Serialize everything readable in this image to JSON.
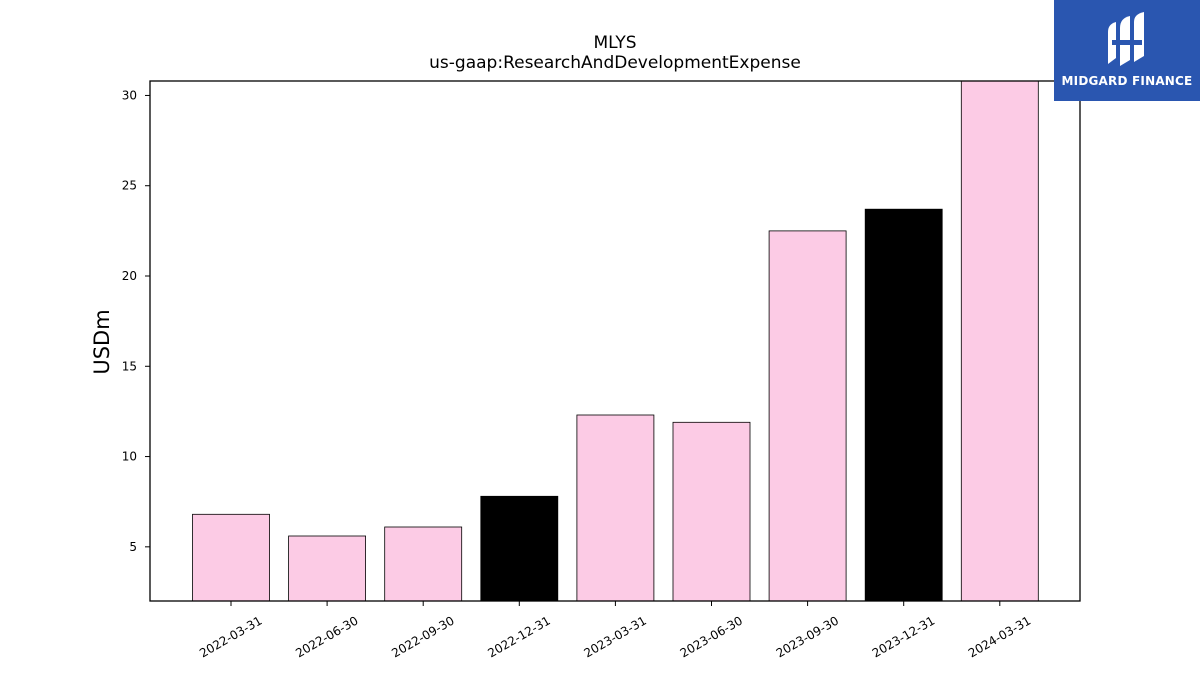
{
  "logo": {
    "text": "MIDGARD FINANCE"
  },
  "chart_data": {
    "type": "bar",
    "title": "MLYS",
    "subtitle": "us-gaap:ResearchAndDevelopmentExpense",
    "ylabel": "USDm",
    "xlabel": "",
    "ylim": [
      2,
      30.8
    ],
    "yticks": [
      5,
      10,
      15,
      20,
      25,
      30
    ],
    "grid": false,
    "categories": [
      "2022-03-31",
      "2022-06-30",
      "2022-09-30",
      "2022-12-31",
      "2023-03-31",
      "2023-06-30",
      "2023-09-30",
      "2023-12-31",
      "2024-03-31"
    ],
    "values": [
      6.8,
      5.6,
      6.1,
      7.8,
      12.3,
      11.9,
      22.5,
      23.7,
      30.8
    ],
    "bar_colors": [
      "#fccbe5",
      "#fccbe5",
      "#fccbe5",
      "#000000",
      "#fccbe5",
      "#fccbe5",
      "#fccbe5",
      "#000000",
      "#fccbe5"
    ]
  }
}
